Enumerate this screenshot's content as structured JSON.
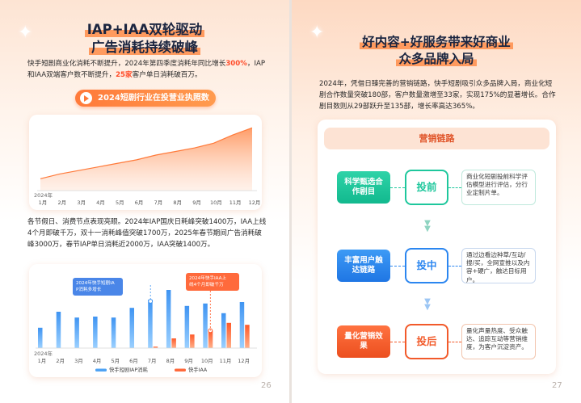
{
  "left_page": {
    "title_line1": "IAP+IAA双轮驱动",
    "title_line2": "广告消耗持续破峰",
    "intro": {
      "part1": "快手短剧商业化消耗不断提升，2024年第四季度消耗年同比增长",
      "hl1": "300%",
      "part2": "，IAP和IAA双端客户数不断提升，",
      "hl2": "25家",
      "part3": "客户单日消耗破百万。"
    },
    "pill_label": "2024短剧行业在投营业执照数",
    "para2": "各节假日、消费节点表现亮眼。2024年IAP国庆日耗峰突破1400万，IAA上线4个月即破千万，双十一消耗峰值突破1700万，2025年春节期间广告消耗破峰3000万，春节IAP单日消耗近2000万，IAA突破1400万。",
    "page_number": "26"
  },
  "right_page": {
    "title_line1": "好内容+好服务带来好商业",
    "title_line2": "众多品牌入局",
    "intro": "2024年，凭借日臻完善的营销链路，快手短剧吸引众多品牌入局，商业化短剧合作数量突破180部，客户数量激增至33家，实现175%的显著增长。合作剧目数则从29部跃升至135部，增长率高达365%。",
    "chain_title": "营销链路",
    "steps": [
      {
        "left": "科学甄选合作剧目",
        "mid": "投前",
        "right": "商业化短剧投前科学评估模型进行评估，分行业定制片单。"
      },
      {
        "left": "丰富用户触达链路",
        "mid": "投中",
        "right": "通过边看边种草/互动/搜/买，全网宣推以及内容+硬广，触达目标用户。"
      },
      {
        "left": "量化营销效果",
        "mid": "投后",
        "right": "量化声量热度、受众触达、追踪互动等营销维度，为客户沉淀资产。"
      }
    ],
    "page_number": "27"
  },
  "chart_data": [
    {
      "type": "area",
      "x": [
        "1月",
        "2月",
        "3月",
        "4月",
        "5月",
        "6月",
        "7月",
        "8月",
        "9月",
        "10月",
        "11月",
        "12月"
      ],
      "year_label": "2024年",
      "series": [
        {
          "values": [
            10,
            14,
            17,
            20,
            23,
            26,
            30,
            33,
            36,
            40,
            47,
            53
          ]
        }
      ],
      "ylim": [
        0,
        60
      ],
      "grid": false
    },
    {
      "type": "bar",
      "x": [
        "1月",
        "2月",
        "3月",
        "4月",
        "5月",
        "6月",
        "7月",
        "8月",
        "9月",
        "10月",
        "11月",
        "12月"
      ],
      "year_label": "2024年",
      "series": [
        {
          "name": "快手短剧IAP消耗",
          "color": "#4fa3f4",
          "values": [
            42,
            75,
            63,
            65,
            63,
            83,
            100,
            120,
            87,
            92,
            72,
            95
          ]
        },
        {
          "name": "快手IAA",
          "color": "#ff6a3c",
          "values": [
            0,
            0,
            0,
            0,
            0,
            0,
            3,
            20,
            28,
            36,
            52,
            48
          ]
        }
      ],
      "ylim": [
        0,
        140
      ],
      "annotations": [
        {
          "text": "2024年快手短剧IAP消耗多增长",
          "series": "快手短剧IAP消耗",
          "month": "7月"
        },
        {
          "text": "2024年快手IAA上线4个月即破千万",
          "series": "快手IAA",
          "month": "10月"
        }
      ],
      "legend": "bottom"
    }
  ],
  "colors": {
    "accent_orange": "#ff7a3a",
    "title_highlight": "#ff9a5e",
    "blue_bar": "#4fa3f4",
    "orange_bar": "#ff6a3c",
    "step1_green": "#1ec79c",
    "step2_blue": "#2b86f0",
    "step3_orange": "#f25a2a"
  }
}
